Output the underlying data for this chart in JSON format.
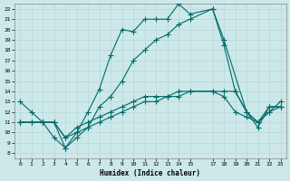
{
  "xlabel": "Humidex (Indice chaleur)",
  "bg_color": "#cce8e8",
  "line_color": "#006b6b",
  "xlim": [
    -0.5,
    23.5
  ],
  "ylim": [
    7.5,
    22.5
  ],
  "yticks": [
    8,
    9,
    10,
    11,
    12,
    13,
    14,
    15,
    16,
    17,
    18,
    19,
    20,
    21,
    22
  ],
  "xticks": [
    0,
    1,
    2,
    3,
    4,
    5,
    6,
    7,
    8,
    9,
    10,
    11,
    12,
    13,
    14,
    15,
    17,
    18,
    19,
    20,
    21,
    22,
    23
  ],
  "line1_x": [
    0,
    1,
    2,
    3,
    4,
    5,
    6,
    7,
    8,
    9,
    10,
    11,
    12,
    13,
    14,
    15,
    17,
    18,
    20,
    21,
    22,
    23
  ],
  "line1_y": [
    13,
    12,
    11,
    9.5,
    8.5,
    10,
    12,
    14.2,
    17.5,
    20,
    19.8,
    21,
    21,
    21,
    22.5,
    21.5,
    22,
    19,
    12,
    11,
    12,
    12.5
  ],
  "line2_x": [
    0,
    2,
    3,
    4,
    5,
    6,
    7,
    8,
    9,
    10,
    11,
    12,
    13,
    14,
    15,
    17,
    18,
    19,
    20,
    21,
    22,
    23
  ],
  "line2_y": [
    11,
    11,
    11,
    8.5,
    9.5,
    10.5,
    12.5,
    13.5,
    15,
    17,
    18,
    19,
    19.5,
    20.5,
    21,
    22,
    18.5,
    14,
    12,
    11,
    12.5,
    12.5
  ],
  "line3_x": [
    0,
    1,
    2,
    3,
    4,
    5,
    6,
    7,
    8,
    9,
    10,
    11,
    12,
    13,
    14,
    15,
    17,
    18,
    19,
    20,
    21,
    22,
    23
  ],
  "line3_y": [
    11,
    11,
    11,
    11,
    9.5,
    10,
    10.5,
    11,
    11.5,
    12,
    12.5,
    13,
    13,
    13.5,
    14,
    14,
    14,
    13.5,
    12,
    11.5,
    11,
    12,
    13
  ],
  "line4_x": [
    0,
    1,
    2,
    3,
    4,
    5,
    6,
    7,
    8,
    9,
    10,
    11,
    12,
    13,
    14,
    15,
    17,
    18,
    19,
    20,
    21,
    22,
    23
  ],
  "line4_y": [
    11,
    11,
    11,
    11,
    9.5,
    10.5,
    11,
    11.5,
    12,
    12.5,
    13,
    13.5,
    13.5,
    13.5,
    13.5,
    14,
    14,
    14,
    14,
    12,
    10.5,
    12.5,
    12.5
  ],
  "grid_color": "#b8d8d8",
  "marker": "+",
  "marker_size": 4,
  "linewidth": 0.8
}
